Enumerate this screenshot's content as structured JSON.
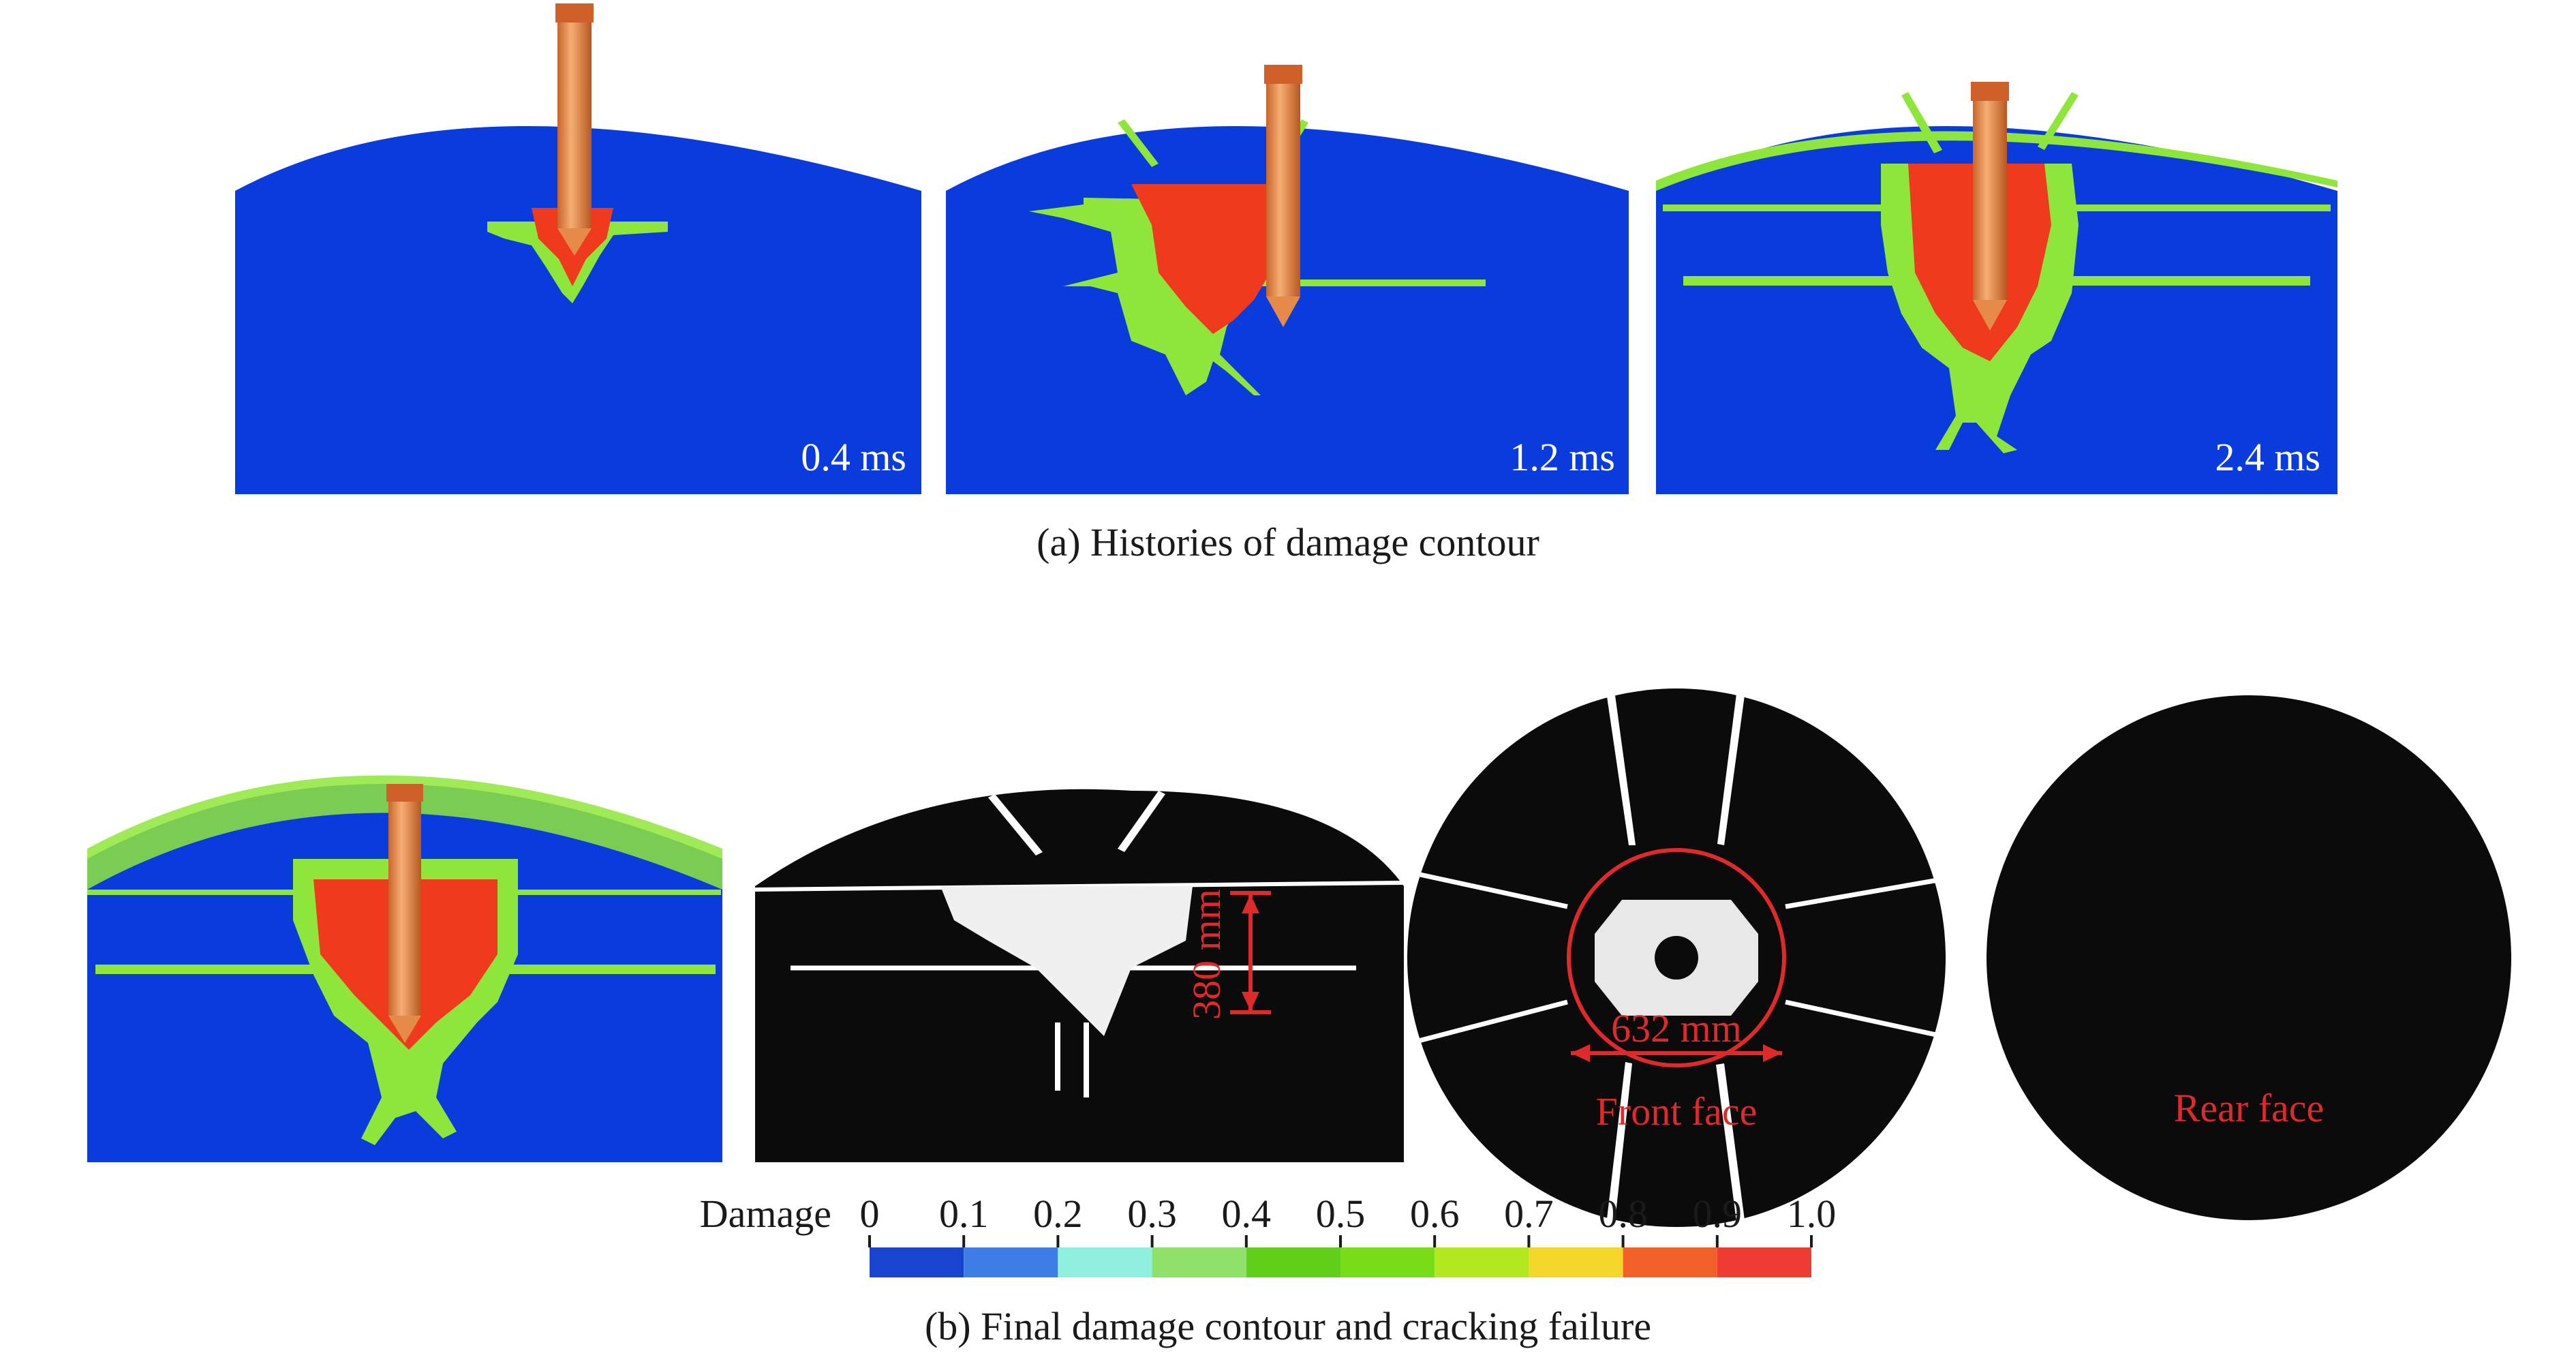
{
  "panel_a": {
    "caption": "(a) Histories of damage contour",
    "snapshots": [
      {
        "time": "0.4 ms"
      },
      {
        "time": "1.2 ms"
      },
      {
        "time": "2.4 ms"
      }
    ]
  },
  "panel_b": {
    "caption": "(b) Final damage contour and cracking failure",
    "dim_depth": "380 mm",
    "dim_diameter": "632 mm",
    "front_face": "Front face",
    "rear_face": "Rear face"
  },
  "legend": {
    "title": "Damage",
    "ticks": [
      "0",
      "0.1",
      "0.2",
      "0.3",
      "0.4",
      "0.5",
      "0.6",
      "0.7",
      "0.8",
      "0.9",
      "1.0"
    ],
    "colors": [
      "#1844d0",
      "#3d7fe6",
      "#8ff0de",
      "#8ee26a",
      "#5fcf1a",
      "#79dc18",
      "#b3e81e",
      "#f2d62a",
      "#f0622a",
      "#ee3c32"
    ]
  },
  "colors": {
    "target": "#0a3bdc",
    "crack": "#8fe63a",
    "damage_high": "#f03a1e",
    "projectile": "#e68a4a",
    "annotation": "#e02a2a",
    "failure_bg": "#0b0b0b"
  }
}
